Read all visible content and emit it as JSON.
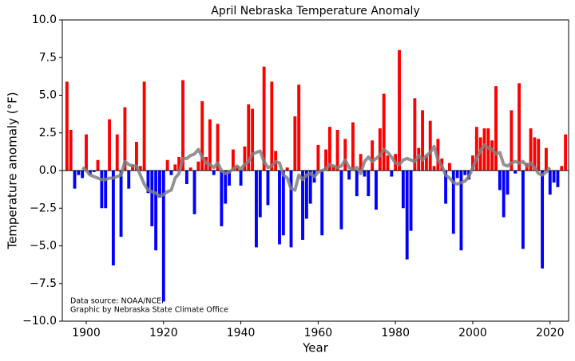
{
  "chart_data": {
    "type": "bar",
    "title": "April Nebraska Temperature Anomaly",
    "xlabel": "Year",
    "ylabel": "Temperature anomaly (°F)",
    "annotations": [
      "Data source: NOAA/NCEI",
      "Graphic by Nebraska State Climate Office"
    ],
    "x": [
      1895,
      1896,
      1897,
      1898,
      1899,
      1900,
      1901,
      1902,
      1903,
      1904,
      1905,
      1906,
      1907,
      1908,
      1909,
      1910,
      1911,
      1912,
      1913,
      1914,
      1915,
      1916,
      1917,
      1918,
      1919,
      1920,
      1921,
      1922,
      1923,
      1924,
      1925,
      1926,
      1927,
      1928,
      1929,
      1930,
      1931,
      1932,
      1933,
      1934,
      1935,
      1936,
      1937,
      1938,
      1939,
      1940,
      1941,
      1942,
      1943,
      1944,
      1945,
      1946,
      1947,
      1948,
      1949,
      1950,
      1951,
      1952,
      1953,
      1954,
      1955,
      1956,
      1957,
      1958,
      1959,
      1960,
      1961,
      1962,
      1963,
      1964,
      1965,
      1966,
      1967,
      1968,
      1969,
      1970,
      1971,
      1972,
      1973,
      1974,
      1975,
      1976,
      1977,
      1978,
      1979,
      1980,
      1981,
      1982,
      1983,
      1984,
      1985,
      1986,
      1987,
      1988,
      1989,
      1990,
      1991,
      1992,
      1993,
      1994,
      1995,
      1996,
      1997,
      1998,
      1999,
      2000,
      2001,
      2002,
      2003,
      2004,
      2005,
      2006,
      2007,
      2008,
      2009,
      2010,
      2011,
      2012,
      2013,
      2014,
      2015,
      2016,
      2017,
      2018,
      2019,
      2020,
      2021,
      2022,
      2023,
      2024
    ],
    "values": [
      5.9,
      2.7,
      -1.2,
      -0.3,
      -0.5,
      2.4,
      -0.3,
      -0.1,
      0.7,
      -2.5,
      -2.5,
      3.4,
      -6.3,
      2.4,
      -4.4,
      4.2,
      -1.2,
      0.4,
      1.9,
      0.3,
      5.9,
      -1.5,
      -3.7,
      -5.3,
      -1.8,
      -8.7,
      0.7,
      -0.3,
      0.4,
      0.9,
      6.0,
      -0.9,
      0.2,
      -2.9,
      0.6,
      4.6,
      0.9,
      3.4,
      -0.3,
      3.1,
      -3.7,
      -2.2,
      -1.0,
      1.4,
      0.3,
      -1.0,
      1.6,
      4.4,
      4.1,
      -5.1,
      -3.1,
      6.9,
      -2.3,
      5.9,
      1.3,
      -4.9,
      -4.3,
      0.2,
      -5.1,
      3.6,
      5.7,
      -4.6,
      -3.2,
      -2.2,
      -0.8,
      1.7,
      -4.3,
      1.4,
      2.9,
      0.3,
      2.7,
      -3.9,
      2.1,
      -0.6,
      3.2,
      -1.7,
      1.1,
      -0.4,
      -1.7,
      2.0,
      -2.6,
      2.8,
      5.1,
      1.0,
      -0.4,
      1.1,
      8.0,
      -2.5,
      -5.9,
      -4.0,
      4.8,
      1.5,
      4.0,
      1.0,
      3.3,
      0.3,
      2.1,
      0.8,
      -2.2,
      0.5,
      -4.2,
      -0.5,
      -5.3,
      -0.3,
      -0.6,
      1.0,
      2.9,
      2.2,
      2.8,
      2.8,
      2.0,
      5.6,
      -1.3,
      -3.1,
      -1.6,
      4.0,
      -0.2,
      5.8,
      -5.2,
      0.5,
      2.8,
      2.2,
      2.1,
      -6.5,
      1.5,
      -1.6,
      -0.8,
      -1.1,
      0.3,
      2.4
    ],
    "positive_color": "#ff0000",
    "negative_color": "#0000ff",
    "line": {
      "color": "#808080",
      "values": [
        null,
        null,
        null,
        null,
        0.2,
        0.0,
        -0.3,
        -0.4,
        -0.5,
        -0.6,
        -0.6,
        -0.5,
        -0.5,
        -0.4,
        -0.3,
        0.6,
        0.4,
        0.3,
        0.3,
        -0.3,
        -0.9,
        -1.3,
        -1.4,
        -1.5,
        -1.7,
        -1.6,
        -1.4,
        -1.3,
        -0.5,
        -0.2,
        0.8,
        0.8,
        1.0,
        1.1,
        1.4,
        0.9,
        0.5,
        0.4,
        0.2,
        0.5,
        0.0,
        -0.2,
        -0.1,
        0.1,
        0.3,
        0.1,
        0.4,
        0.6,
        1.1,
        1.2,
        1.3,
        0.6,
        0.2,
        0.3,
        0.6,
        0.5,
        -0.3,
        -0.5,
        -1.2,
        -1.3,
        -0.3,
        -0.6,
        -0.3,
        -0.2,
        -0.4,
        -0.1,
        0.0,
        0.1,
        0.4,
        0.3,
        0.2,
        0.3,
        0.7,
        0.2,
        0.1,
        0.2,
        -0.2,
        0.6,
        0.9,
        0.6,
        0.8,
        1.0,
        1.4,
        1.2,
        0.9,
        0.5,
        0.4,
        0.7,
        0.8,
        0.7,
        0.6,
        1.0,
        0.7,
        1.0,
        1.2,
        1.6,
        0.7,
        0.3,
        -0.3,
        -0.5,
        -0.8,
        -0.9,
        -0.8,
        -0.7,
        -0.4,
        0.2,
        0.8,
        1.3,
        1.7,
        1.5,
        1.4,
        1.1,
        1.2,
        0.4,
        0.3,
        0.5,
        0.6,
        0.5,
        0.6,
        0.3,
        0.5,
        0.2,
        -0.2,
        -0.3,
        -0.1,
        0.2,
        null,
        null,
        null,
        null
      ]
    },
    "xlim": [
      1893.8,
      2024.8
    ],
    "ylim": [
      -10,
      10
    ],
    "xticks": [
      1900,
      1920,
      1940,
      1960,
      1980,
      2000,
      2020
    ],
    "yticks": [
      {
        "value": 10,
        "label": "10.0"
      },
      {
        "value": 7.5,
        "label": "7.5"
      },
      {
        "value": 5,
        "label": "5.0"
      },
      {
        "value": 2.5,
        "label": "2.5"
      },
      {
        "value": 0,
        "label": "0.0"
      },
      {
        "value": -2.5,
        "label": "−2.5"
      },
      {
        "value": -5,
        "label": "−5.0"
      },
      {
        "value": -7.5,
        "label": "−7.5"
      },
      {
        "value": -10,
        "label": "−10.0"
      }
    ]
  }
}
